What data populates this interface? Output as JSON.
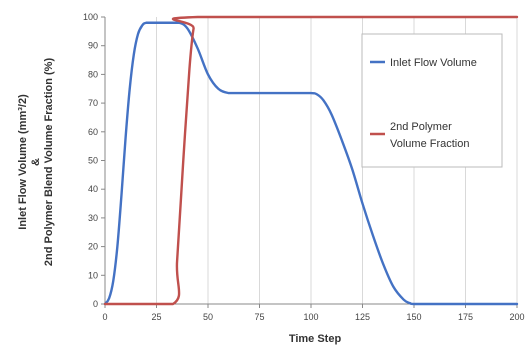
{
  "chart_data": {
    "type": "line",
    "title": "",
    "xlabel": "Time Step",
    "ylabel": {
      "line1": "Inlet Flow Volume (mm³/2)",
      "line2": "&",
      "line3": "2nd Polymer Blend Volume Fraction (%)"
    },
    "xlim": [
      0,
      200
    ],
    "ylim": [
      0,
      100
    ],
    "xticks": [
      "0",
      "25",
      "50",
      "75",
      "100",
      "125",
      "150",
      "175",
      "200"
    ],
    "yticks": [
      "0",
      "10",
      "20",
      "30",
      "40",
      "50",
      "60",
      "70",
      "80",
      "90",
      "100"
    ],
    "grid": "vertical",
    "legend_position": "right",
    "series": [
      {
        "name": "Inlet Flow Volume",
        "color": "#4472c4",
        "x": [
          0,
          2,
          4,
          6,
          8,
          10,
          12,
          14,
          16,
          18,
          20,
          25,
          30,
          36,
          40,
          45,
          50,
          55,
          60,
          65,
          70,
          80,
          90,
          100,
          103,
          106,
          110,
          115,
          120,
          125,
          130,
          135,
          140,
          145,
          148,
          150,
          160,
          175,
          200
        ],
        "y": [
          0,
          2,
          8,
          20,
          38,
          58,
          75,
          87,
          94,
          97,
          98,
          98,
          98,
          98,
          96,
          89,
          80,
          75,
          73.5,
          73.5,
          73.5,
          73.5,
          73.5,
          73.5,
          73,
          71,
          66,
          57,
          47,
          35,
          24,
          14,
          6,
          1.5,
          0.3,
          0,
          0,
          0,
          0
        ]
      },
      {
        "name": "2nd Polymer Volume Fraction",
        "legend_lines": [
          "2nd Polymer",
          "Volume Fraction"
        ],
        "color": "#c0504d",
        "x": [
          0,
          33,
          35,
          38,
          41,
          43,
          45,
          200
        ],
        "y": [
          0,
          0,
          15,
          50,
          82,
          96,
          100,
          100
        ]
      }
    ]
  }
}
